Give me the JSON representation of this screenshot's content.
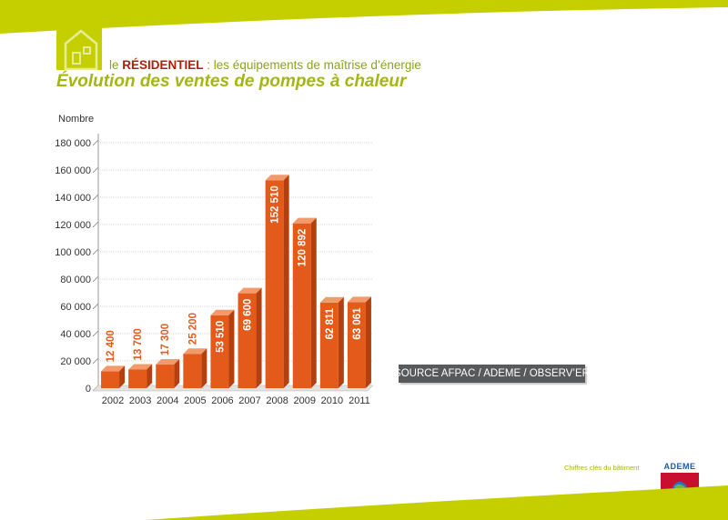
{
  "header": {
    "prefix": "le",
    "section": "RÉSIDENTIEL",
    "subtitle": " : les équipements de maîtrise d’énergie",
    "title": "Évolution des ventes de pompes à chaleur"
  },
  "colors": {
    "accent_green": "#c5cf00",
    "title_green": "#a3b611",
    "bar_front": "#e35a1b",
    "bar_top": "#f39a6b",
    "bar_side": "#b4400f",
    "red": "#c8102e",
    "source_bg": "#58595b"
  },
  "chart_data": {
    "type": "bar",
    "ylabel": "Nombre",
    "ylim": [
      0,
      180000
    ],
    "yticks": [
      "0",
      "20 000",
      "40 000",
      "60 000",
      "80 000",
      "100 000",
      "120 000",
      "140 000",
      "160 000",
      "180 000"
    ],
    "categories": [
      "2002",
      "2003",
      "2004",
      "2005",
      "2006",
      "2007",
      "2008",
      "2009",
      "2010",
      "2011"
    ],
    "values": [
      12400,
      13700,
      17300,
      25200,
      53510,
      69600,
      152510,
      120892,
      62811,
      63061
    ],
    "value_labels": [
      "12 400",
      "13 700",
      "17 300",
      "25 200",
      "53 510",
      "69 600",
      "152 510",
      "120 892",
      "62 811",
      "63 061"
    ],
    "grid": true,
    "style": "3d"
  },
  "source": "SOURCE AFPAC / ADEME / OBSERV’ER",
  "footer": {
    "caption": "Chiffres clés du bâtiment",
    "logo_text": "ADEME"
  }
}
